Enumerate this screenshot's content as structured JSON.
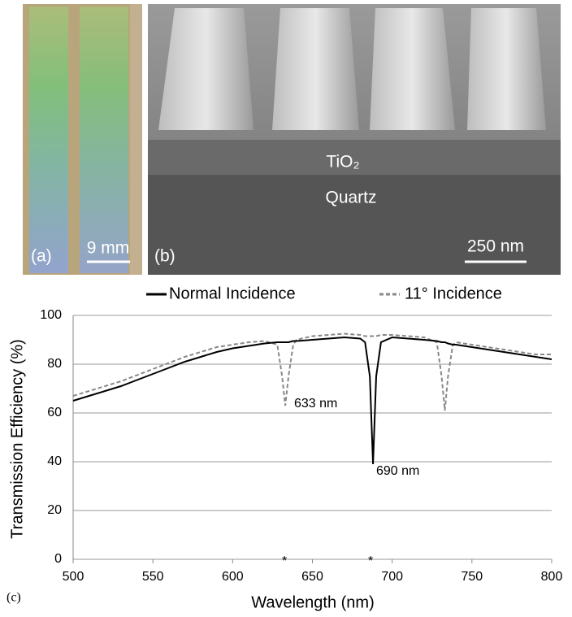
{
  "panels": {
    "a": {
      "label": "(a)",
      "scale_bar": "9 mm"
    },
    "b": {
      "label": "(b)",
      "scale_bar": "250 nm",
      "layers": [
        "TiO₂",
        "Quartz"
      ]
    },
    "c": {
      "label": "(c)"
    }
  },
  "chart_data": {
    "type": "line",
    "xlabel": "Wavelength (nm)",
    "ylabel": "Transmission Efficiency (%)",
    "x": [
      500,
      510,
      520,
      530,
      540,
      550,
      560,
      570,
      580,
      590,
      600,
      610,
      620,
      628,
      631,
      633,
      635,
      638,
      640,
      650,
      660,
      670,
      680,
      683,
      686,
      688,
      690,
      693,
      700,
      710,
      720,
      728,
      731,
      733,
      735,
      738,
      740,
      750,
      760,
      770,
      780,
      790,
      800
    ],
    "series": [
      {
        "name": "Normal Incidence",
        "color": "#000000",
        "style": "solid",
        "values": [
          65,
          67,
          69,
          71,
          73.5,
          76,
          78.5,
          81,
          83,
          85,
          86.5,
          87.5,
          88.5,
          89,
          89,
          89,
          89,
          89.5,
          89.5,
          90,
          90.5,
          91,
          90.5,
          89,
          75,
          39,
          75,
          89,
          91,
          90.5,
          90,
          89.5,
          89,
          89,
          88.5,
          88,
          88,
          87,
          86,
          85,
          84,
          83,
          82
        ]
      },
      {
        "name": "11° Incidence",
        "color": "#888888",
        "style": "dashed",
        "values": [
          67,
          69,
          71,
          73,
          75.5,
          78,
          80.5,
          83,
          85,
          87,
          88,
          89,
          89.5,
          88,
          75,
          63,
          75,
          88,
          90,
          91.5,
          92,
          92.5,
          92,
          91.5,
          91.5,
          91.5,
          91.5,
          92,
          92,
          91.5,
          91,
          89,
          75,
          61,
          75,
          88,
          89,
          88,
          87,
          86,
          85,
          84,
          84
        ]
      }
    ],
    "xlim": [
      500,
      800
    ],
    "ylim": [
      0,
      100
    ],
    "xticks": [
      500,
      550,
      600,
      650,
      700,
      750,
      800
    ],
    "yticks": [
      0,
      20,
      40,
      60,
      80,
      100
    ],
    "grid": true,
    "annotations": [
      "633 nm",
      "690 nm",
      "*",
      "*"
    ]
  }
}
